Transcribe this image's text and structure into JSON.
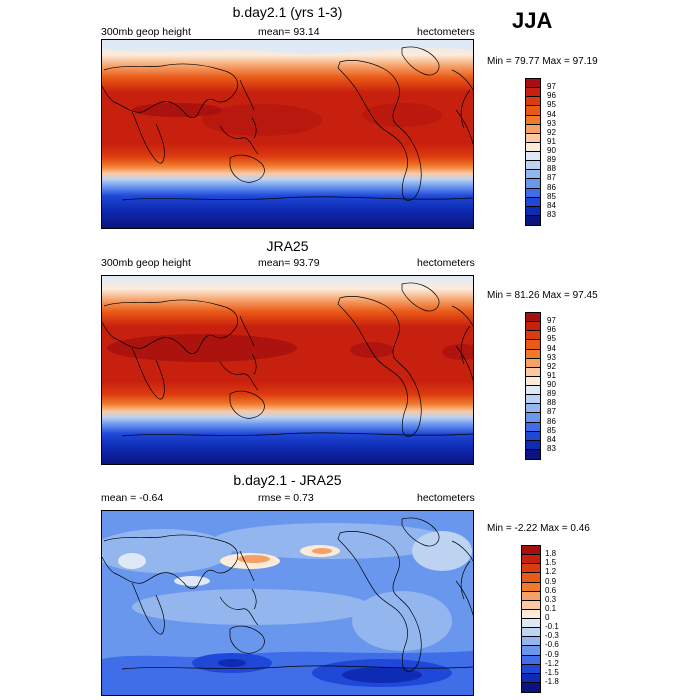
{
  "season": "JJA",
  "panels": [
    {
      "title": "b.day2.1 (yrs 1-3)",
      "field_label": "300mb geop height",
      "mean_label": "mean=  93.14",
      "units": "hectometers",
      "minmax_label": "Min =  79.77 Max =  97.19",
      "colorbar": {
        "ticks": [
          "97",
          "96",
          "95",
          "94",
          "93",
          "92",
          "91",
          "90",
          "89",
          "88",
          "87",
          "86",
          "85",
          "84",
          "83"
        ],
        "colors": [
          "#a50f0f",
          "#c8200e",
          "#dd3b10",
          "#ea5a17",
          "#f07a2a",
          "#f5a068",
          "#fac8a3",
          "#fdebd9",
          "#dfe9f6",
          "#bdd3f2",
          "#93b6ee",
          "#6a97ee",
          "#3f6ee8",
          "#1f48d8",
          "#0e2cb3",
          "#0a1380"
        ]
      }
    },
    {
      "title": "JRA25",
      "field_label": "300mb geop height",
      "mean_label": "mean=  93.79",
      "units": "hectometers",
      "minmax_label": "Min =  81.26 Max =  97.45",
      "colorbar": {
        "ticks": [
          "97",
          "96",
          "95",
          "94",
          "93",
          "92",
          "91",
          "90",
          "89",
          "88",
          "87",
          "86",
          "85",
          "84",
          "83"
        ],
        "colors": [
          "#a50f0f",
          "#c8200e",
          "#dd3b10",
          "#ea5a17",
          "#f07a2a",
          "#f5a068",
          "#fac8a3",
          "#fdebd9",
          "#dfe9f6",
          "#bdd3f2",
          "#93b6ee",
          "#6a97ee",
          "#3f6ee8",
          "#1f48d8",
          "#0e2cb3",
          "#0a1380"
        ]
      }
    },
    {
      "title": "b.day2.1 - JRA25",
      "mean_label": "mean =  -0.64",
      "rmse_label": "rmse =   0.73",
      "units": "hectometers",
      "minmax_label": "Min =  -2.22 Max =   0.46",
      "colorbar": {
        "ticks": [
          "1.8",
          "1.5",
          "1.2",
          "0.9",
          "0.6",
          "0.3",
          "0.1",
          "0",
          "-0.1",
          "-0.3",
          "-0.6",
          "-0.9",
          "-1.2",
          "-1.5",
          "-1.8"
        ],
        "colors": [
          "#a50f0f",
          "#c8200e",
          "#dd3b10",
          "#ea5a17",
          "#f07a2a",
          "#f5a068",
          "#fac8a3",
          "#fdebd9",
          "#dfe9f6",
          "#bdd3f2",
          "#93b6ee",
          "#6a97ee",
          "#3f6ee8",
          "#1f48d8",
          "#0e2cb3",
          "#0a1380"
        ]
      }
    }
  ]
}
